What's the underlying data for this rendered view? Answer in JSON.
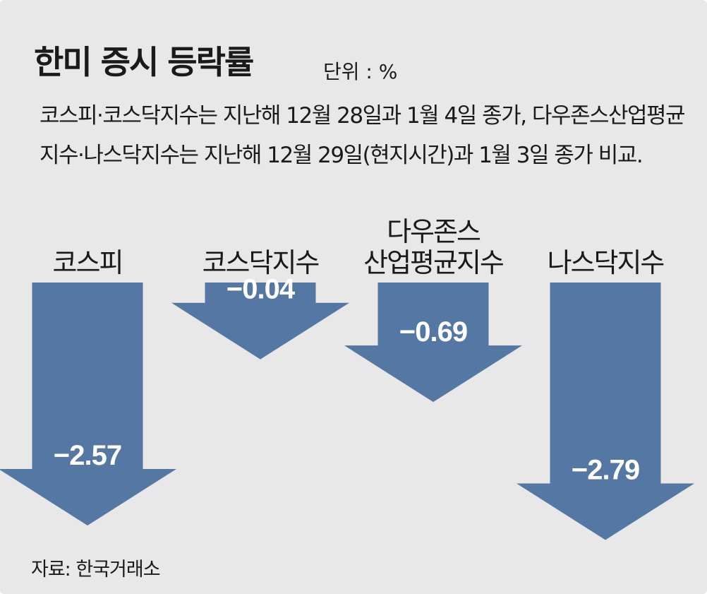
{
  "title": "한미 증시 등락률",
  "unit": "단위 : %",
  "subtitle": "코스피·코스닥지수는 지난해 12월 28일과 1월 4일 종가, 다우존스산업평균지수·나스닥지수는 지난해 12월 29일(현지시간)과 1월 3일 종가 비교.",
  "source": "자료: 한국거래소",
  "colors": {
    "background": "#e8e8e8",
    "arrow": "#5577a3",
    "text": "#1a1a1a",
    "value_text": "#ffffff"
  },
  "chart_data": {
    "type": "bar",
    "categories": [
      "코스피",
      "코스닥지수",
      "다우존스 산업평균지수",
      "나스닥지수"
    ],
    "category_lines": [
      [
        "코스피"
      ],
      [
        "코스닥지수"
      ],
      [
        "다우존스",
        "산업평균지수"
      ],
      [
        "나스닥지수"
      ]
    ],
    "values": [
      -2.57,
      -0.04,
      -0.69,
      -2.79
    ],
    "value_labels": [
      "−2.57",
      "−0.04",
      "−0.69",
      "−2.79"
    ],
    "ylabel": "",
    "unit": "%",
    "ylim": [
      -2.79,
      0
    ],
    "grid": false,
    "legend": "none"
  }
}
